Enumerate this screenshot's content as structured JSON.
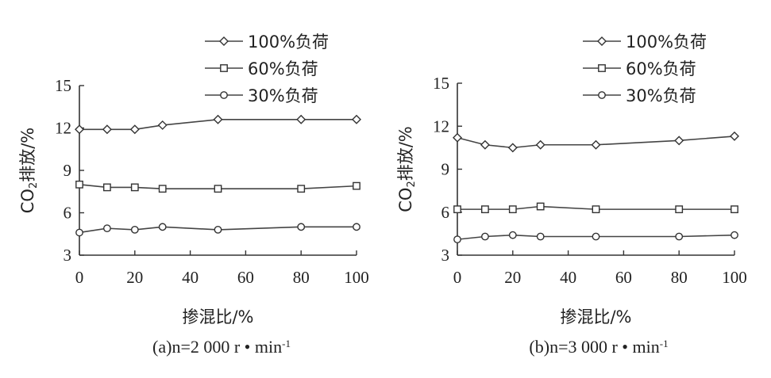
{
  "chart_data": [
    {
      "type": "line",
      "caption": "(a)n=2 000 r • min⁻¹",
      "xlabel": "掺混比/%",
      "ylabel": "CO₂排放/%",
      "xlim": [
        0,
        100
      ],
      "ylim": [
        3,
        15
      ],
      "x_ticks": [
        0,
        20,
        40,
        60,
        80,
        100
      ],
      "y_ticks": [
        3,
        6,
        9,
        12,
        15
      ],
      "grid": false,
      "legend_position": "top-right",
      "series": [
        {
          "name": "100%负荷",
          "marker": "diamond",
          "x": [
            0,
            10,
            20,
            30,
            50,
            80,
            100
          ],
          "values": [
            11.9,
            11.9,
            11.9,
            12.2,
            12.6,
            12.6,
            12.6
          ]
        },
        {
          "name": "60%负荷",
          "marker": "square",
          "x": [
            0,
            10,
            20,
            30,
            50,
            80,
            100
          ],
          "values": [
            8.0,
            7.8,
            7.8,
            7.7,
            7.7,
            7.7,
            7.9
          ]
        },
        {
          "name": "30%负荷",
          "marker": "circle",
          "x": [
            0,
            10,
            20,
            30,
            50,
            80,
            100
          ],
          "values": [
            4.6,
            4.9,
            4.8,
            5.0,
            4.8,
            5.0,
            5.0
          ]
        }
      ]
    },
    {
      "type": "line",
      "caption": "(b)n=3 000 r • min⁻¹",
      "xlabel": "掺混比/%",
      "ylabel": "CO₂排放/%",
      "xlim": [
        0,
        100
      ],
      "ylim": [
        3,
        15
      ],
      "x_ticks": [
        0,
        20,
        40,
        60,
        80,
        100
      ],
      "y_ticks": [
        3,
        6,
        9,
        12,
        15
      ],
      "grid": false,
      "legend_position": "top-right",
      "series": [
        {
          "name": "100%负荷",
          "marker": "diamond",
          "x": [
            0,
            10,
            20,
            30,
            50,
            80,
            100
          ],
          "values": [
            11.2,
            10.7,
            10.5,
            10.7,
            10.7,
            11.0,
            11.3
          ]
        },
        {
          "name": "60%负荷",
          "marker": "square",
          "x": [
            0,
            10,
            20,
            30,
            50,
            80,
            100
          ],
          "values": [
            6.2,
            6.2,
            6.2,
            6.4,
            6.2,
            6.2,
            6.2
          ]
        },
        {
          "name": "30%负荷",
          "marker": "circle",
          "x": [
            0,
            10,
            20,
            30,
            50,
            80,
            100
          ],
          "values": [
            4.1,
            4.3,
            4.4,
            4.3,
            4.3,
            4.3,
            4.4
          ]
        }
      ]
    }
  ]
}
